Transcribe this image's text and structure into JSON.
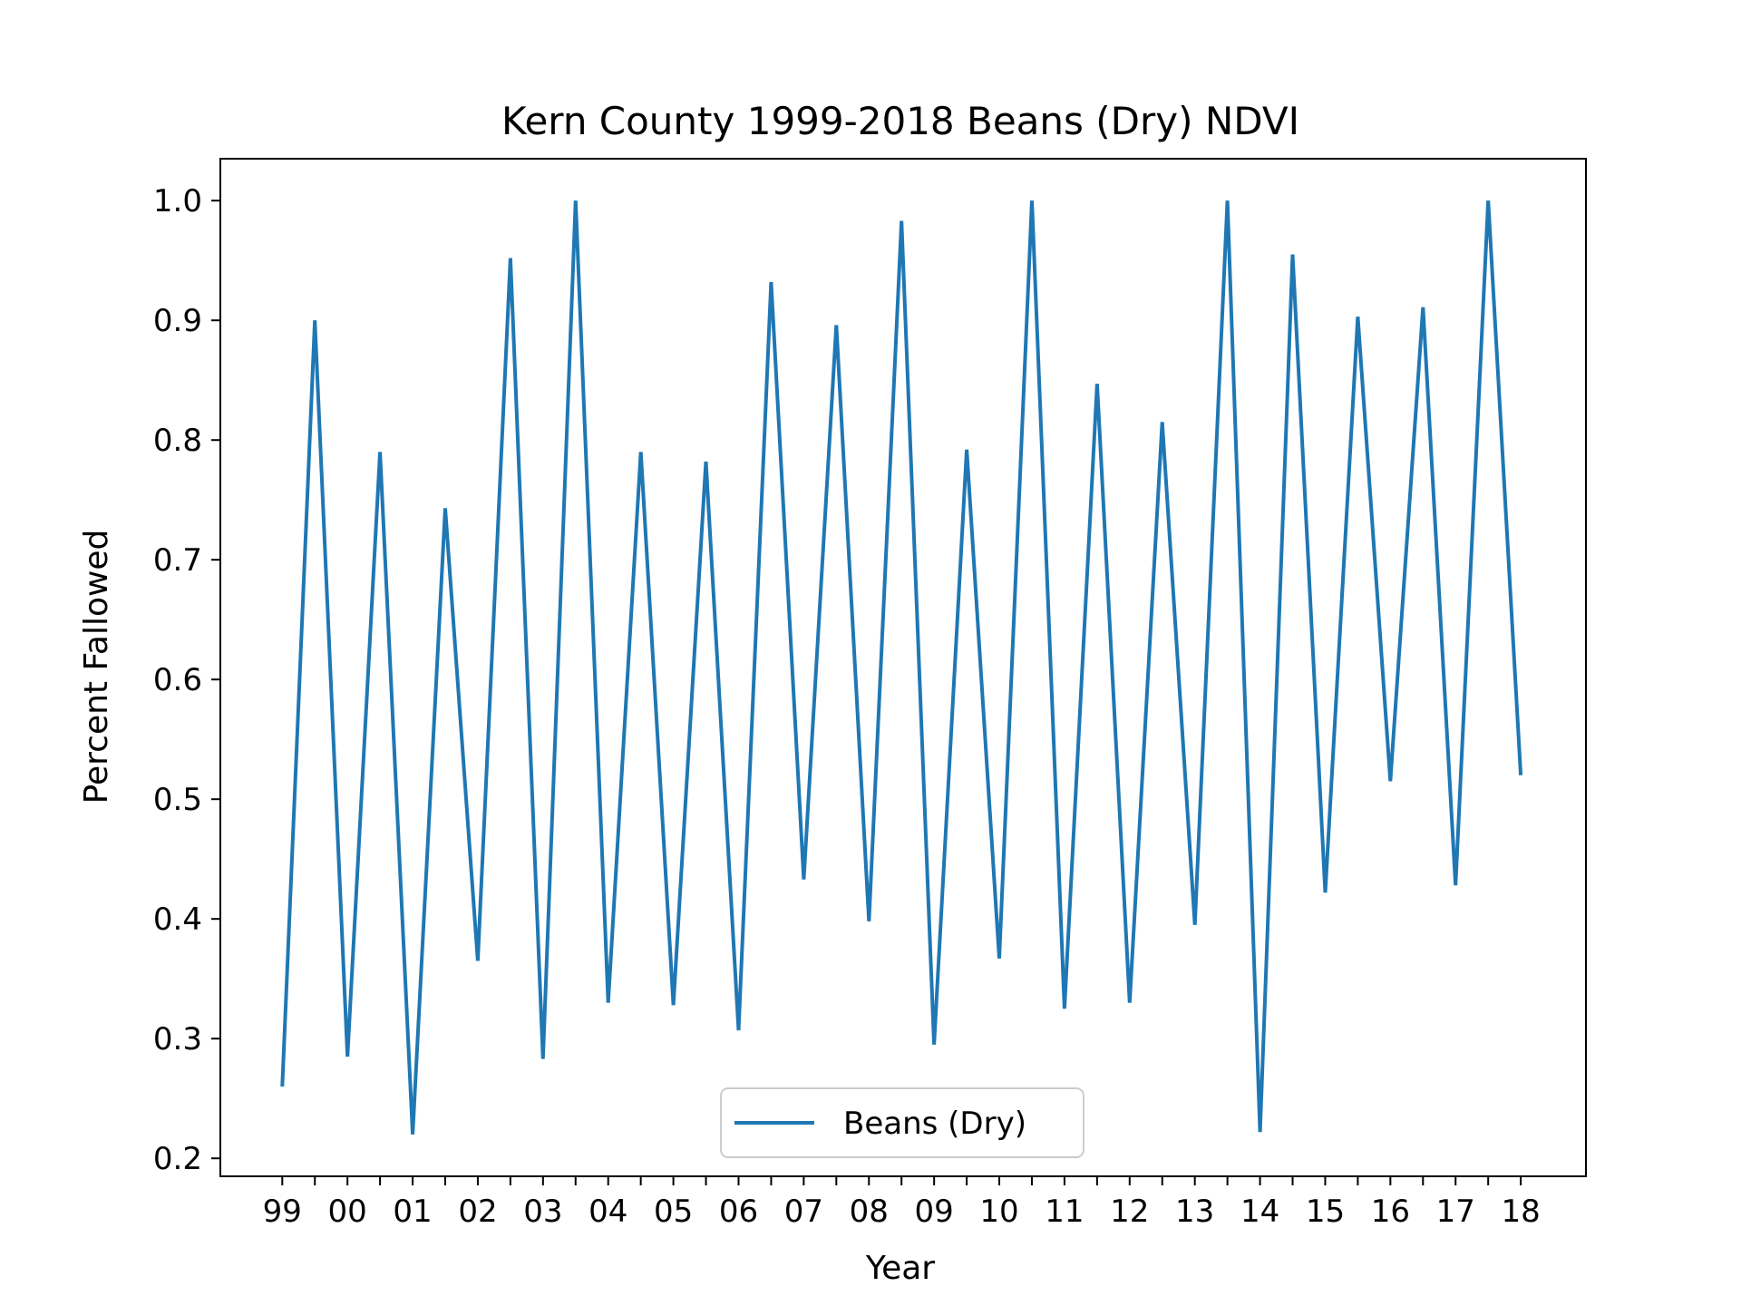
{
  "chart_data": {
    "type": "line",
    "title": "Kern County 1999-2018 Beans (Dry) NDVI",
    "xlabel": "Year",
    "ylabel": "Percent Fallowed",
    "xtick_labels": [
      "99",
      "00",
      "01",
      "02",
      "03",
      "04",
      "05",
      "06",
      "07",
      "08",
      "09",
      "10",
      "11",
      "12",
      "13",
      "14",
      "15",
      "16",
      "17",
      "18"
    ],
    "ylim": [
      0.185,
      1.035
    ],
    "yticks": [
      0.2,
      0.3,
      0.4,
      0.5,
      0.6,
      0.7,
      0.8,
      0.9,
      1.0
    ],
    "ytick_labels": [
      "0.2",
      "0.3",
      "0.4",
      "0.5",
      "0.6",
      "0.7",
      "0.8",
      "0.9",
      "1.0"
    ],
    "xlim": [
      -0.95,
      20.0
    ],
    "grid": false,
    "legend_position": "lower center",
    "series": [
      {
        "name": "Beans (Dry)",
        "color": "#1f77b4",
        "x": [
          0,
          0.5,
          1,
          1.5,
          2,
          2.5,
          3,
          3.5,
          4,
          4.5,
          5,
          5.5,
          6,
          6.5,
          7,
          7.5,
          8,
          8.5,
          9,
          9.5,
          10,
          10.5,
          11,
          11.5,
          12,
          12.5,
          13,
          13.5,
          14,
          14.5,
          15,
          15.5,
          16,
          16.5,
          17,
          17.5,
          18,
          18.5,
          19
        ],
        "values": [
          0.26,
          0.9,
          0.285,
          0.79,
          0.22,
          0.743,
          0.365,
          0.952,
          0.283,
          1.0,
          0.33,
          0.79,
          0.328,
          0.782,
          0.307,
          0.932,
          0.433,
          0.896,
          0.398,
          0.983,
          0.295,
          0.792,
          0.367,
          1.0,
          0.325,
          0.847,
          0.33,
          0.815,
          0.395,
          1.0,
          0.222,
          0.955,
          0.422,
          0.903,
          0.515,
          0.911,
          0.428,
          1.0,
          0.52
        ]
      }
    ]
  }
}
